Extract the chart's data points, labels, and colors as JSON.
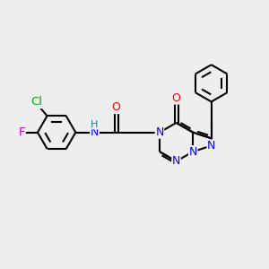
{
  "bg_color": "#eeeeee",
  "bond_color": "#000000",
  "bond_width": 1.5,
  "atom_colors": {
    "N": "#0000ff",
    "O": "#ff0000",
    "Cl": "#00aa00",
    "F": "#cc00cc",
    "H": "#008888",
    "C": "#000000"
  },
  "font_size": 9,
  "fig_width": 3.0,
  "fig_height": 3.0,
  "dpi": 100
}
